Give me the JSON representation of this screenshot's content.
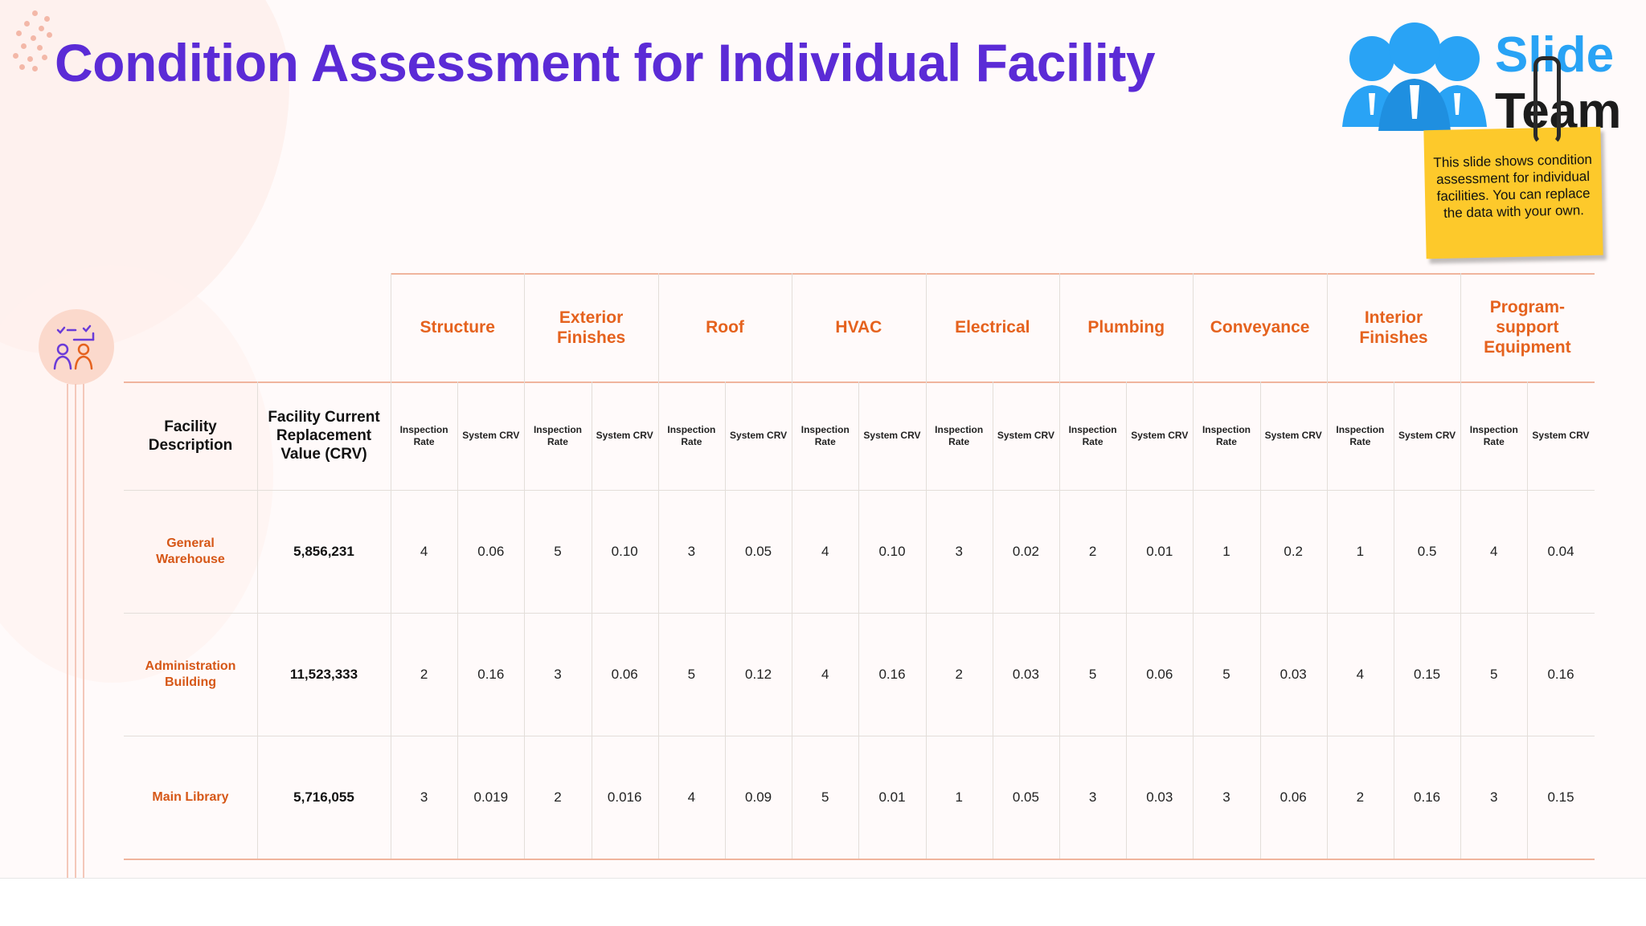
{
  "slide": {
    "title": "Condition Assessment for Individual Facility",
    "logo": {
      "line1": "Slide",
      "line2": "Team"
    },
    "note": "This slide shows condition assessment for individual facilities. You can replace the data with your own."
  },
  "colors": {
    "title": "#5b2bd6",
    "accent": "#e5621e",
    "note": "#fdc92b",
    "logo_blue": "#29a3f5"
  },
  "icons": [
    "people-icon",
    "checklist-people-icon"
  ],
  "table": {
    "corner_headers": [
      "Facility Description",
      "Facility Current Replacement Value (CRV)"
    ],
    "categories": [
      "Structure",
      "Exterior Finishes",
      "Roof",
      "HVAC",
      "Electrical",
      "Plumbing",
      "Conveyance",
      "Interior Finishes",
      "Program-support Equipment"
    ],
    "subheaders": [
      "Inspection Rate",
      "System CRV"
    ],
    "rows": [
      {
        "facility": "General Warehouse",
        "crv": "5,856,231",
        "values": [
          "4",
          "0.06",
          "5",
          "0.10",
          "3",
          "0.05",
          "4",
          "0.10",
          "3",
          "0.02",
          "2",
          "0.01",
          "1",
          "0.2",
          "1",
          "0.5",
          "4",
          "0.04"
        ]
      },
      {
        "facility": "Administration Building",
        "crv": "11,523,333",
        "values": [
          "2",
          "0.16",
          "3",
          "0.06",
          "5",
          "0.12",
          "4",
          "0.16",
          "2",
          "0.03",
          "5",
          "0.06",
          "5",
          "0.03",
          "4",
          "0.15",
          "5",
          "0.16"
        ]
      },
      {
        "facility": "Main Library",
        "crv": "5,716,055",
        "values": [
          "3",
          "0.019",
          "2",
          "0.016",
          "4",
          "0.09",
          "5",
          "0.01",
          "1",
          "0.05",
          "3",
          "0.03",
          "3",
          "0.06",
          "2",
          "0.16",
          "3",
          "0.15"
        ]
      }
    ]
  }
}
